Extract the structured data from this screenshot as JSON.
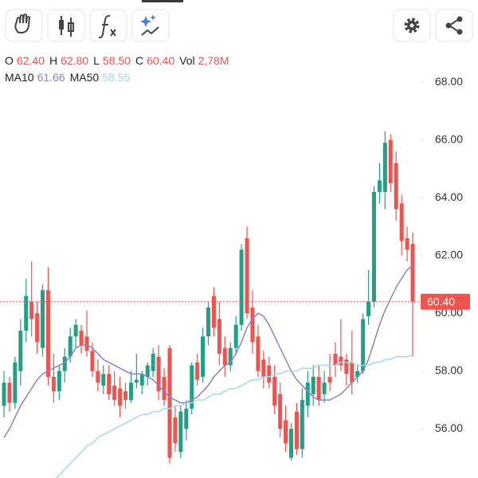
{
  "header": {
    "labels": [
      "O",
      "H",
      "L",
      "C",
      "Vol"
    ],
    "values": [
      "62.40",
      "62.80",
      "58.50",
      "60.40",
      "2,78M"
    ],
    "ma_labels": [
      "MA10",
      "MA50"
    ],
    "ma_values": [
      "61.66",
      "58.55"
    ]
  },
  "chart_data": {
    "type": "candlestick",
    "up_color": "#22a087",
    "down_color": "#ef5350",
    "ylim": [
      54.3,
      68.36
    ],
    "yticks": [
      {
        "value": 56,
        "label": "56.00"
      },
      {
        "value": 58,
        "label": "58.00"
      },
      {
        "value": 60,
        "label": "60.00"
      },
      {
        "value": 62,
        "label": "62.00"
      },
      {
        "value": 64,
        "label": "64.00"
      },
      {
        "value": 66,
        "label": "66.00"
      },
      {
        "value": 68,
        "label": "68.00"
      }
    ],
    "last_price": {
      "value": 60.4,
      "label": "60.40",
      "color": "#ef5350"
    },
    "open": [
      56.8,
      57.6,
      56.9,
      58.0,
      59.4,
      60.4,
      60.0,
      58.8,
      60.8,
      57.8,
      57.3,
      58.0,
      58.5,
      59.2,
      59.4,
      59.2,
      58.7,
      58.0,
      57.5,
      57.9,
      57.5,
      57.4,
      57.3,
      57.0,
      57.6,
      57.5,
      57.8,
      58.0,
      58.5,
      57.8,
      58.8,
      56.4,
      55.2,
      56.0,
      56.7,
      58.3,
      57.8,
      59.2,
      60.6,
      59.8,
      58.8,
      58.2,
      58.8,
      59.6,
      62.6,
      60.2,
      59.2,
      58.4,
      58.2,
      57.8,
      57.2,
      56.3,
      55.0,
      56.6,
      55.3,
      56.8,
      57.2,
      57.8,
      57.2,
      57.8,
      58.6,
      58.5,
      58.4,
      58.3,
      57.8,
      58.0,
      59.9,
      60.4,
      64.2,
      64.2,
      66.0,
      65.2,
      63.8,
      62.6,
      62.4
    ],
    "high": [
      58.0,
      57.8,
      58.5,
      59.8,
      61.2,
      61.8,
      60.4,
      61.0,
      61.6,
      58.6,
      58.2,
      58.8,
      59.5,
      59.8,
      59.6,
      60.1,
      59.0,
      58.4,
      58.2,
      58.2,
      58.0,
      57.8,
      57.6,
      58.0,
      58.6,
      58.0,
      58.3,
      58.8,
      58.9,
      58.1,
      58.9,
      56.8,
      56.8,
      57.0,
      58.3,
      58.6,
      59.5,
      60.4,
      60.9,
      60.4,
      59.2,
      59.0,
      59.9,
      62.4,
      63.0,
      60.8,
      59.6,
      58.7,
      58.5,
      58.2,
      57.6,
      56.8,
      56.2,
      56.9,
      57.4,
      58.0,
      58.2,
      58.2,
      58.0,
      58.6,
      59.0,
      59.8,
      58.6,
      59.4,
      58.2,
      60.0,
      61.5,
      64.4,
      65.2,
      66.3,
      66.2,
      65.6,
      64.1,
      63.0,
      62.8
    ],
    "low": [
      56.4,
      56.6,
      56.7,
      57.5,
      59.0,
      59.2,
      58.6,
      58.5,
      57.5,
      56.9,
      57.0,
      57.6,
      58.3,
      58.8,
      58.6,
      58.5,
      57.8,
      57.3,
      57.2,
      57.0,
      56.8,
      56.4,
      56.7,
      56.9,
      57.4,
      57.2,
      57.5,
      57.8,
      57.0,
      56.8,
      54.8,
      55.2,
      55.0,
      55.6,
      56.5,
      57.5,
      57.6,
      58.9,
      59.2,
      58.2,
      57.8,
      58.0,
      58.6,
      59.4,
      59.8,
      58.6,
      57.8,
      57.4,
      57.4,
      56.5,
      55.7,
      55.2,
      54.9,
      55.1,
      55.0,
      56.4,
      56.8,
      56.8,
      56.9,
      57.3,
      57.8,
      58.0,
      57.5,
      57.2,
      57.6,
      57.9,
      59.6,
      60.2,
      63.8,
      63.6,
      64.2,
      63.2,
      62.0,
      61.8,
      58.5
    ],
    "close": [
      57.6,
      56.9,
      58.3,
      59.4,
      60.6,
      59.8,
      59.0,
      60.8,
      57.8,
      57.3,
      58.0,
      58.5,
      59.2,
      59.6,
      58.9,
      58.7,
      58.0,
      57.6,
      57.9,
      57.2,
      57.0,
      56.8,
      57.0,
      57.6,
      57.7,
      57.9,
      58.2,
      58.6,
      57.3,
      57.0,
      55.0,
      55.5,
      56.6,
      56.7,
      58.2,
      57.7,
      59.2,
      60.2,
      59.5,
      58.6,
      58.2,
      58.8,
      59.6,
      62.2,
      60.0,
      59.0,
      58.0,
      57.8,
      57.6,
      56.8,
      56.0,
      55.5,
      56.0,
      55.3,
      57.0,
      57.6,
      57.8,
      57.0,
      57.6,
      57.6,
      58.2,
      58.2,
      57.9,
      57.6,
      58.0,
      59.8,
      60.4,
      64.2,
      64.6,
      65.9,
      64.5,
      63.6,
      62.5,
      62.2,
      60.4
    ],
    "series": [
      {
        "name": "MA10",
        "color": "#8f7fc4",
        "values": [
          55.7,
          56.0,
          56.4,
          56.8,
          57.1,
          57.4,
          57.7,
          57.9,
          58.0,
          58.1,
          58.2,
          58.3,
          58.5,
          58.8,
          58.9,
          58.9,
          58.8,
          58.6,
          58.4,
          58.3,
          58.2,
          58.1,
          58.0,
          57.9,
          57.9,
          57.9,
          57.8,
          57.7,
          57.5,
          57.3,
          57.1,
          57.0,
          56.9,
          56.9,
          57.0,
          57.1,
          57.3,
          57.5,
          57.8,
          58.0,
          58.2,
          58.3,
          58.6,
          59.0,
          59.5,
          59.8,
          60.0,
          59.9,
          59.6,
          59.2,
          58.8,
          58.4,
          58.0,
          57.7,
          57.5,
          57.3,
          57.1,
          57.0,
          57.0,
          57.0,
          57.1,
          57.2,
          57.4,
          57.6,
          57.8,
          58.0,
          58.4,
          59.0,
          59.6,
          60.1,
          60.5,
          60.9,
          61.2,
          61.5,
          61.66
        ]
      },
      {
        "name": "MA50",
        "color": "#a3d8ef",
        "values": [
          null,
          null,
          null,
          null,
          null,
          null,
          null,
          null,
          null,
          54.2,
          54.4,
          54.6,
          54.8,
          55.0,
          55.2,
          55.4,
          55.5,
          55.7,
          55.8,
          55.9,
          56.0,
          56.1,
          56.2,
          56.3,
          56.4,
          56.5,
          56.5,
          56.6,
          56.6,
          56.7,
          56.7,
          56.8,
          56.8,
          56.9,
          56.9,
          57.0,
          57.0,
          57.1,
          57.2,
          57.2,
          57.3,
          57.4,
          57.4,
          57.5,
          57.6,
          57.7,
          57.7,
          57.8,
          57.8,
          57.9,
          57.9,
          58.0,
          58.0,
          58.0,
          58.1,
          58.1,
          58.1,
          58.2,
          58.2,
          58.2,
          58.2,
          58.3,
          58.3,
          58.3,
          58.2,
          58.2,
          58.2,
          58.3,
          58.3,
          58.4,
          58.4,
          58.5,
          58.5,
          58.5,
          58.55
        ]
      }
    ]
  }
}
